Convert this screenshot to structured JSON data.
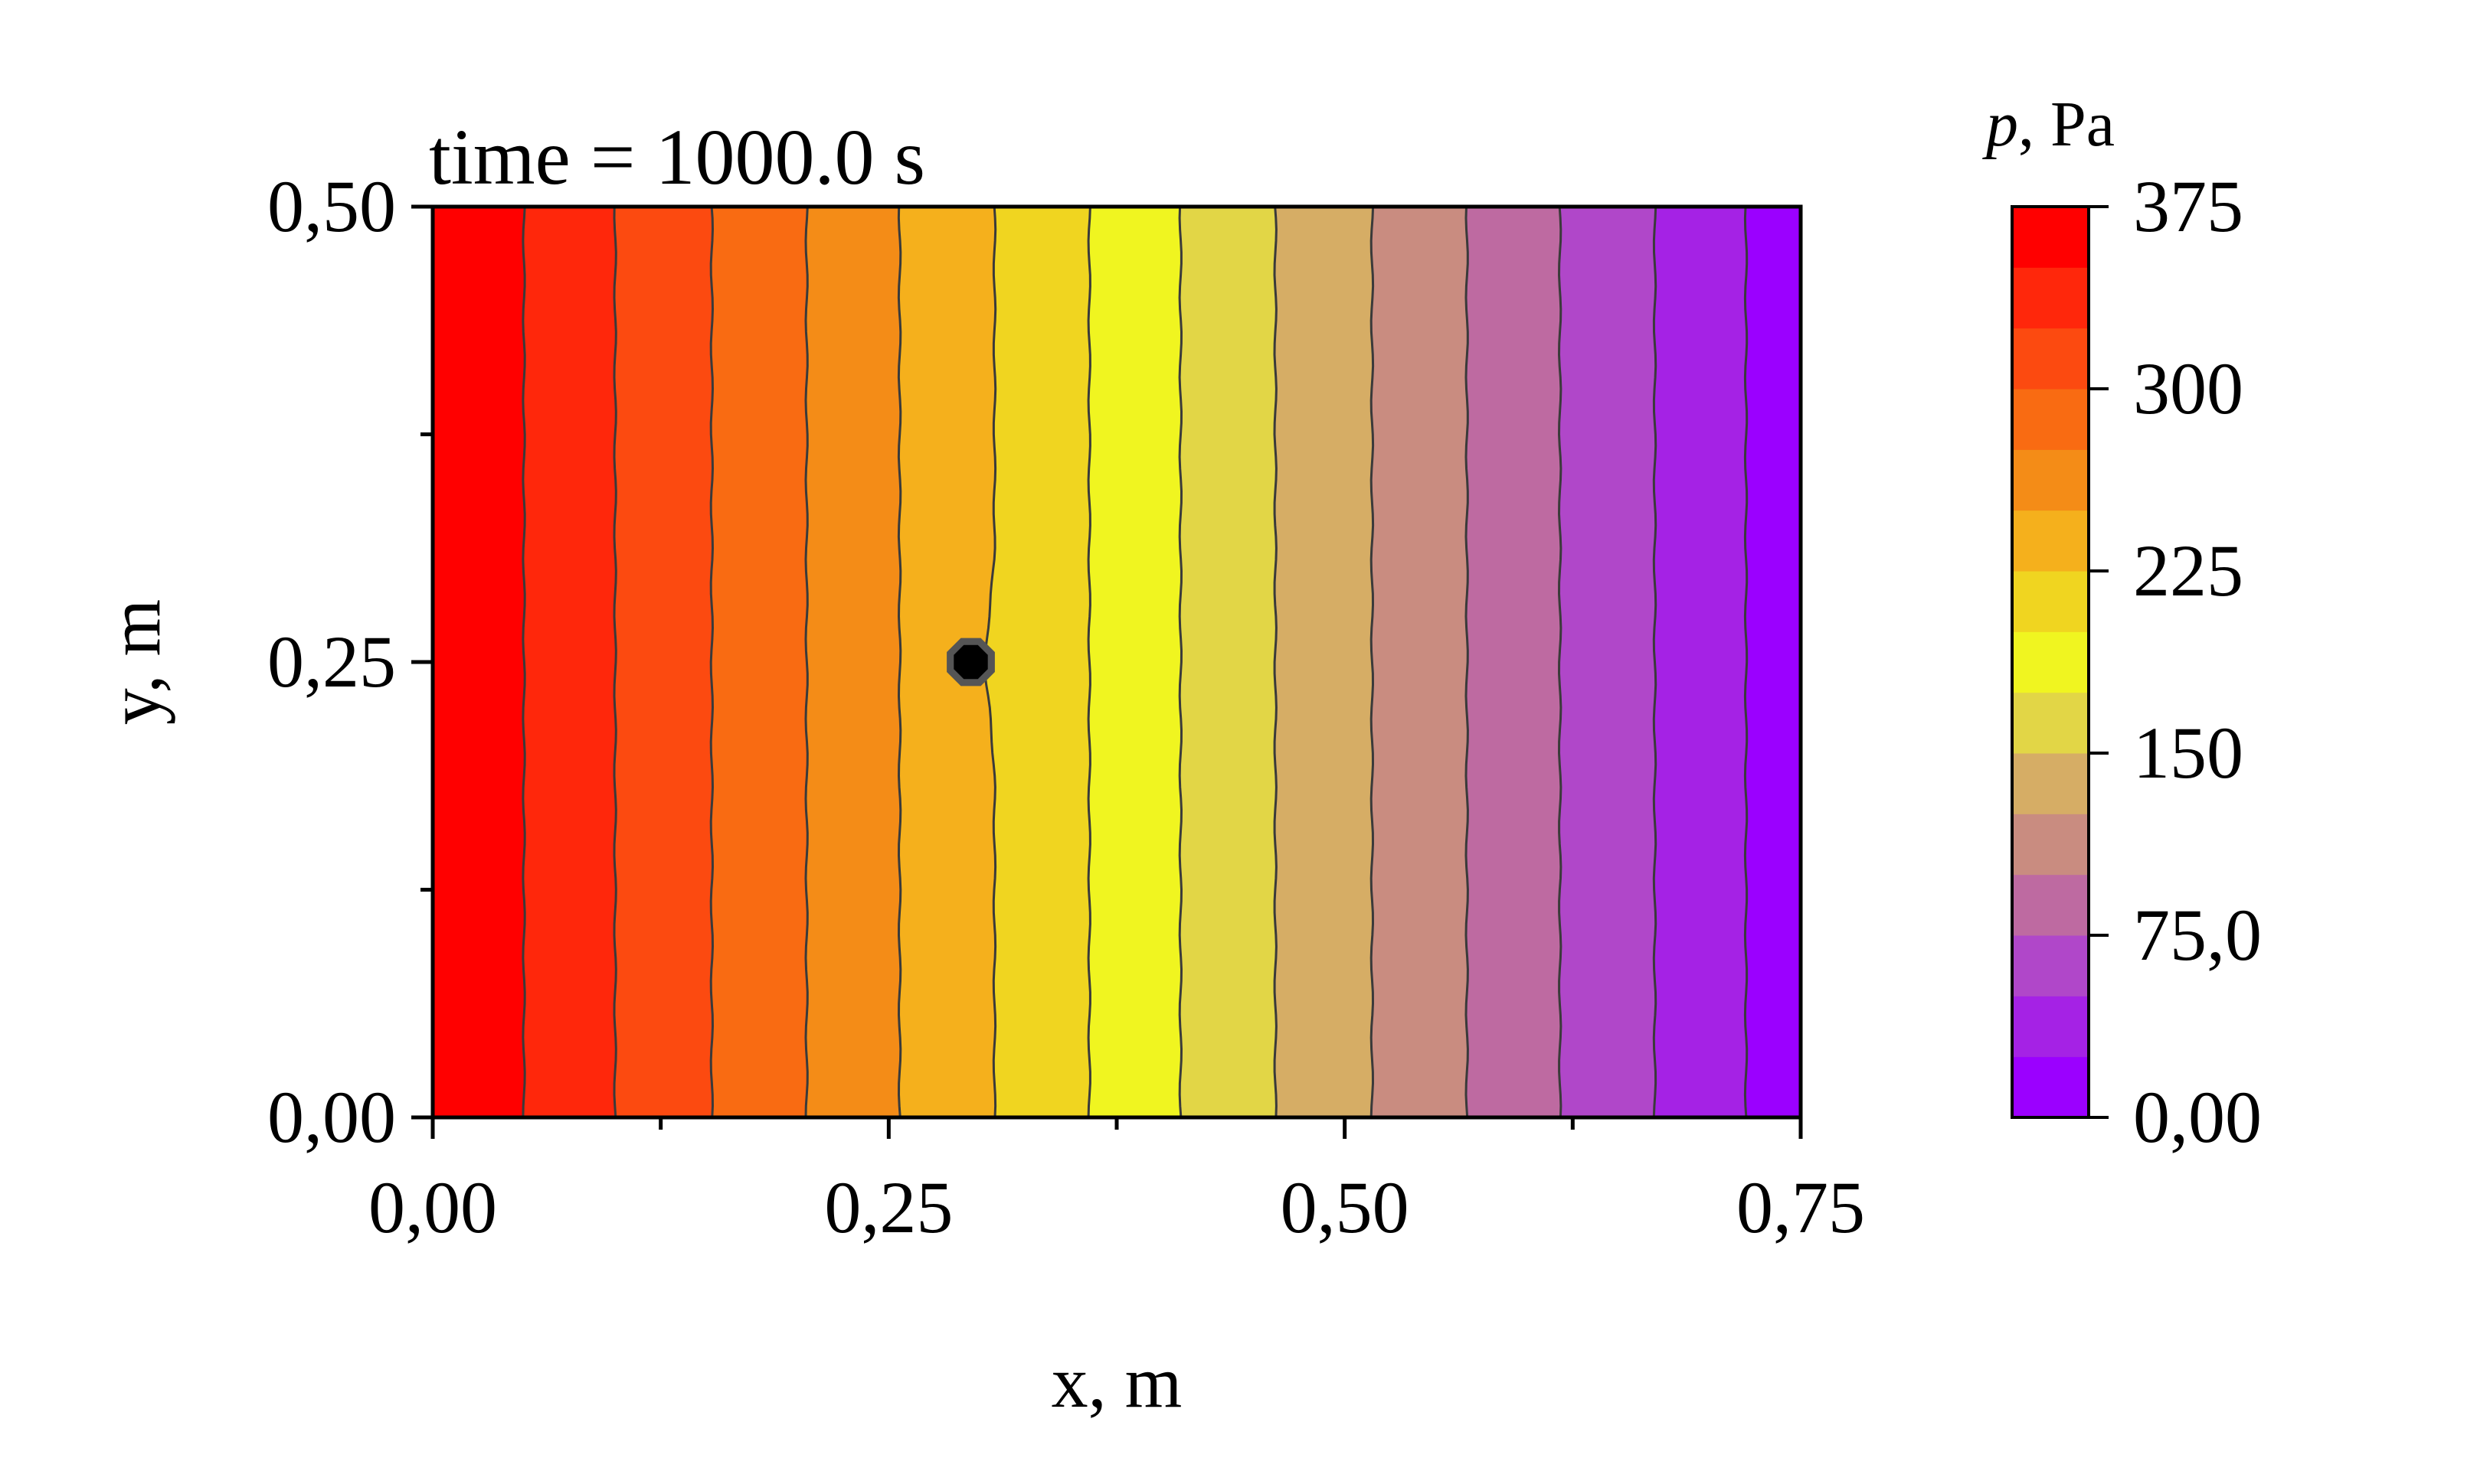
{
  "chart_data": {
    "type": "heatmap",
    "annotation": "time = 1000.0 s",
    "xlabel": "x, m",
    "ylabel": "y, m",
    "xlim": [
      0,
      0.75
    ],
    "ylim": [
      0,
      0.5
    ],
    "x_ticks": [
      {
        "value": 0.0,
        "label": "0,00"
      },
      {
        "value": 0.25,
        "label": "0,25"
      },
      {
        "value": 0.5,
        "label": "0,50"
      },
      {
        "value": 0.75,
        "label": "0,75"
      }
    ],
    "x_minor_ticks": [
      0.125,
      0.375,
      0.625
    ],
    "y_ticks": [
      {
        "value": 0.0,
        "label": "0,00"
      },
      {
        "value": 0.25,
        "label": "0,25"
      },
      {
        "value": 0.5,
        "label": "0,50"
      }
    ],
    "y_minor_ticks": [
      0.125,
      0.375
    ],
    "colorbar": {
      "title_var": "p",
      "title_unit": ", Pa",
      "range": [
        0,
        375
      ],
      "levels": 15,
      "level_step": 25,
      "ticks": [
        {
          "value": 0,
          "label": "0,00"
        },
        {
          "value": 75,
          "label": "75,0"
        },
        {
          "value": 150,
          "label": "150"
        },
        {
          "value": 225,
          "label": "225"
        },
        {
          "value": 300,
          "label": "300"
        },
        {
          "value": 375,
          "label": "375"
        }
      ],
      "colors": [
        "#9b00ff",
        "#a522e5",
        "#b047c9",
        "#be6aa1",
        "#c98c80",
        "#d6ad65",
        "#e2d646",
        "#f0f520",
        "#f0d520",
        "#f5b01c",
        "#f48c17",
        "#f96b12",
        "#fc4a10",
        "#ff270b",
        "#ff0000"
      ]
    },
    "contour_lines_x": [
      0.05,
      0.1,
      0.153,
      0.205,
      0.256,
      0.308,
      0.36,
      0.41,
      0.462,
      0.515,
      0.567,
      0.618,
      0.67,
      0.72
    ],
    "bands": [
      {
        "x0": 0.0,
        "x1": 0.05,
        "level": 14
      },
      {
        "x0": 0.05,
        "x1": 0.1,
        "level": 13
      },
      {
        "x0": 0.1,
        "x1": 0.153,
        "level": 12
      },
      {
        "x0": 0.153,
        "x1": 0.205,
        "level": 11
      },
      {
        "x0": 0.205,
        "x1": 0.256,
        "level": 10
      },
      {
        "x0": 0.256,
        "x1": 0.308,
        "level": 9
      },
      {
        "x0": 0.308,
        "x1": 0.36,
        "level": 8
      },
      {
        "x0": 0.36,
        "x1": 0.41,
        "level": 7
      },
      {
        "x0": 0.41,
        "x1": 0.462,
        "level": 6
      },
      {
        "x0": 0.462,
        "x1": 0.515,
        "level": 5
      },
      {
        "x0": 0.515,
        "x1": 0.567,
        "level": 4
      },
      {
        "x0": 0.567,
        "x1": 0.618,
        "level": 3
      },
      {
        "x0": 0.618,
        "x1": 0.67,
        "level": 2
      },
      {
        "x0": 0.67,
        "x1": 0.72,
        "level": 1
      },
      {
        "x0": 0.72,
        "x1": 0.75,
        "level": 0
      }
    ],
    "marker": {
      "x": 0.295,
      "y": 0.25
    },
    "grid": false
  }
}
